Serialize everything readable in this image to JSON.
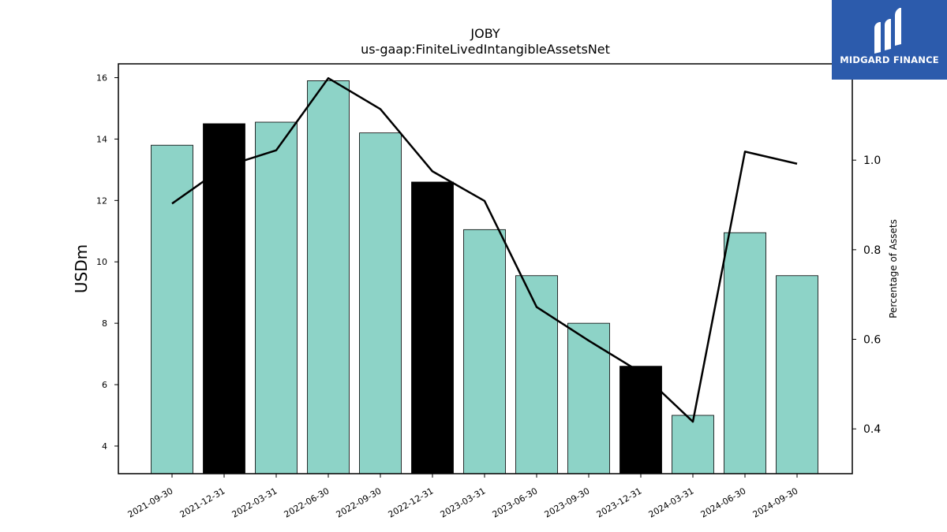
{
  "chart_data": {
    "type": "bar",
    "title": "JOBY",
    "subtitle": "us-gaap:FiniteLivedIntangibleAssetsNet",
    "ylabel": "USDm",
    "y2label": "Percentage of Assets",
    "categories": [
      "2021-09-30",
      "2021-12-31",
      "2022-03-31",
      "2022-06-30",
      "2022-09-30",
      "2022-12-31",
      "2023-03-31",
      "2023-06-30",
      "2023-09-30",
      "2023-12-31",
      "2024-03-31",
      "2024-06-30",
      "2024-09-30"
    ],
    "series": [
      {
        "type": "bar",
        "axis": "left",
        "values": [
          13.8,
          14.5,
          14.55,
          15.9,
          14.2,
          12.6,
          11.05,
          9.55,
          8.0,
          6.6,
          5.0,
          10.95,
          9.55
        ]
      },
      {
        "type": "line",
        "axis": "right",
        "values": [
          0.903,
          0.985,
          1.022,
          1.183,
          1.114,
          0.975,
          0.909,
          0.672,
          0.597,
          0.526,
          0.416,
          1.019,
          0.992
        ]
      }
    ],
    "bar_colors": [
      "#8dd3c7",
      "#000000",
      "#8dd3c7",
      "#8dd3c7",
      "#8dd3c7",
      "#000000",
      "#8dd3c7",
      "#8dd3c7",
      "#8dd3c7",
      "#000000",
      "#8dd3c7",
      "#8dd3c7",
      "#8dd3c7"
    ],
    "line_color": "#000000",
    "ylim": [
      3.1,
      16.45
    ],
    "y2lim": [
      0.3,
      1.215
    ],
    "yticks": [
      4,
      6,
      8,
      10,
      12,
      14,
      16
    ],
    "y2ticks": [
      0.4,
      0.6,
      0.8,
      1.0
    ],
    "grid": false,
    "legend": "none"
  },
  "logo": {
    "text": "MIDGARD FINANCE",
    "background": "#2c5bac"
  }
}
